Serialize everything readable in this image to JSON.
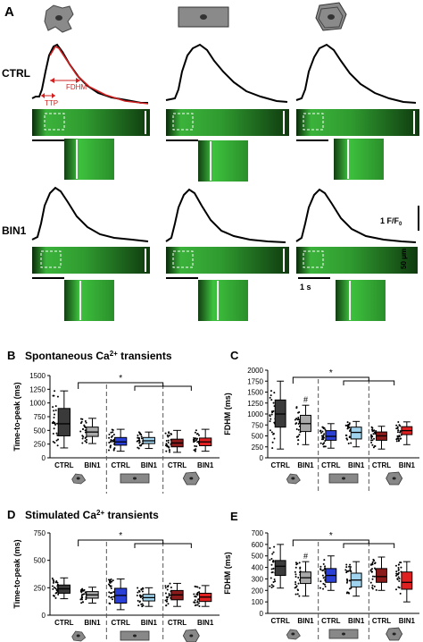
{
  "panels": {
    "A": {
      "letter": "A",
      "row_labels": [
        "CTRL",
        "BIN1"
      ],
      "annotations": {
        "fdhm": "FDHM",
        "ttp": "TTP"
      },
      "scale": {
        "amplitude": "1 F/F",
        "amplitude_sub": "0",
        "length": "50 μm",
        "time": "1 s"
      }
    },
    "B": {
      "letter": "B",
      "title_pre": "Spontaneous Ca",
      "title_sup": "2+",
      "title_post": " transients"
    },
    "C": {
      "letter": "C"
    },
    "D": {
      "letter": "D",
      "title_pre": "Stimulated Ca",
      "title_sup": "2+",
      "title_post": " transients"
    },
    "E": {
      "letter": "E"
    }
  },
  "colors": {
    "ctrl_dark": "#3a3a3a",
    "bin1_gray": "#a9a9a9",
    "blue": "#2a3fd6",
    "light_blue": "#9fd3ee",
    "dark_red": "#8b1a1a",
    "red": "#e02020",
    "confocal_green": "#3bb33b",
    "fit_red": "#d02020"
  },
  "chart_data": [
    {
      "panel": "B",
      "type": "box",
      "ylabel": "Time-to-peak (ms)",
      "ylim": [
        0,
        1500
      ],
      "yticks": [
        0,
        250,
        500,
        750,
        1000,
        1250,
        1500
      ],
      "categories": [
        "CTRL",
        "BIN1",
        "CTRL",
        "BIN1",
        "CTRL",
        "BIN1"
      ],
      "groups": [
        "amorphous",
        "rod",
        "hexagonal"
      ],
      "significance": [
        "*"
      ],
      "hash": [],
      "boxes": [
        {
          "min": 180,
          "q1": 400,
          "median": 620,
          "q3": 900,
          "max": 1220
        },
        {
          "min": 260,
          "q1": 390,
          "median": 470,
          "q3": 560,
          "max": 720
        },
        {
          "min": 120,
          "q1": 230,
          "median": 290,
          "q3": 370,
          "max": 520
        },
        {
          "min": 170,
          "q1": 260,
          "median": 310,
          "q3": 370,
          "max": 470
        },
        {
          "min": 100,
          "q1": 200,
          "median": 270,
          "q3": 340,
          "max": 500
        },
        {
          "min": 120,
          "q1": 220,
          "median": 290,
          "q3": 360,
          "max": 520
        }
      ]
    },
    {
      "panel": "C",
      "type": "box",
      "ylabel": "FDHM (ms)",
      "ylim": [
        0,
        2000
      ],
      "yticks": [
        0,
        250,
        500,
        750,
        1000,
        1250,
        1500,
        1750,
        2000
      ],
      "categories": [
        "CTRL",
        "BIN1",
        "CTRL",
        "BIN1",
        "CTRL",
        "BIN1"
      ],
      "groups": [
        "amorphous",
        "rod",
        "hexagonal"
      ],
      "significance": [
        "*"
      ],
      "hash": [
        "#"
      ],
      "boxes": [
        {
          "min": 200,
          "q1": 700,
          "median": 1000,
          "q3": 1320,
          "max": 1750
        },
        {
          "min": 300,
          "q1": 600,
          "median": 780,
          "q3": 970,
          "max": 1200
        },
        {
          "min": 220,
          "q1": 400,
          "median": 490,
          "q3": 620,
          "max": 780
        },
        {
          "min": 250,
          "q1": 430,
          "median": 580,
          "q3": 700,
          "max": 830
        },
        {
          "min": 200,
          "q1": 400,
          "median": 500,
          "q3": 590,
          "max": 720
        },
        {
          "min": 300,
          "q1": 530,
          "median": 620,
          "q3": 710,
          "max": 820
        }
      ]
    },
    {
      "panel": "D",
      "type": "box",
      "ylabel": "Time-to-peak (ms)",
      "ylim": [
        0,
        750
      ],
      "yticks": [
        0,
        250,
        500,
        750
      ],
      "categories": [
        "CTRL",
        "BIN1",
        "CTRL",
        "BIN1",
        "CTRL",
        "BIN1"
      ],
      "groups": [
        "amorphous",
        "rod",
        "hexagonal"
      ],
      "significance": [
        "*"
      ],
      "hash": [],
      "boxes": [
        {
          "min": 150,
          "q1": 200,
          "median": 240,
          "q3": 275,
          "max": 340
        },
        {
          "min": 110,
          "q1": 155,
          "median": 185,
          "q3": 215,
          "max": 255
        },
        {
          "min": 50,
          "q1": 110,
          "median": 180,
          "q3": 245,
          "max": 330
        },
        {
          "min": 80,
          "q1": 130,
          "median": 160,
          "q3": 190,
          "max": 250
        },
        {
          "min": 80,
          "q1": 140,
          "median": 185,
          "q3": 225,
          "max": 290
        },
        {
          "min": 80,
          "q1": 125,
          "median": 165,
          "q3": 200,
          "max": 270
        }
      ]
    },
    {
      "panel": "E",
      "type": "box",
      "ylabel": "FDHM (ms)",
      "ylim": [
        0,
        700
      ],
      "yticks": [
        0,
        100,
        200,
        300,
        400,
        500,
        600,
        700
      ],
      "categories": [
        "CTRL",
        "BIN1",
        "CTRL",
        "BIN1",
        "CTRL",
        "BIN1"
      ],
      "groups": [
        "amorphous",
        "rod",
        "hexagonal"
      ],
      "significance": [
        "*"
      ],
      "hash": [
        "#"
      ],
      "boxes": [
        {
          "min": 220,
          "q1": 330,
          "median": 410,
          "q3": 460,
          "max": 600
        },
        {
          "min": 150,
          "q1": 260,
          "median": 310,
          "q3": 360,
          "max": 450
        },
        {
          "min": 200,
          "q1": 270,
          "median": 330,
          "q3": 390,
          "max": 500
        },
        {
          "min": 150,
          "q1": 230,
          "median": 290,
          "q3": 350,
          "max": 450
        },
        {
          "min": 200,
          "q1": 270,
          "median": 320,
          "q3": 390,
          "max": 490
        },
        {
          "min": 100,
          "q1": 210,
          "median": 270,
          "q3": 360,
          "max": 450
        }
      ]
    }
  ]
}
